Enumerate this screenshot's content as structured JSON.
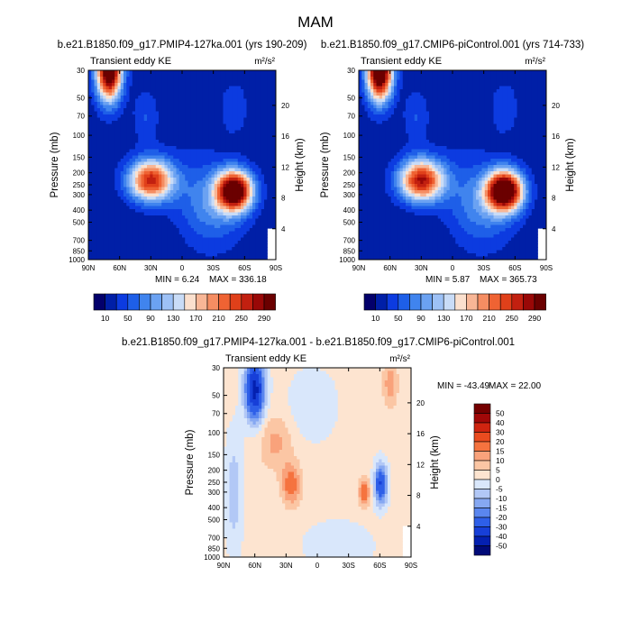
{
  "figure": {
    "title": "MAM",
    "y_axis_label": "Pressure (mb)",
    "y2_axis_label": "Height (km)",
    "x_ticks": [
      "90N",
      "60N",
      "30N",
      "0",
      "30S",
      "60S",
      "90S"
    ],
    "pressure_ticks": [
      "30",
      "50",
      "70",
      "100",
      "150",
      "200",
      "250",
      "300",
      "400",
      "500",
      "700",
      "850",
      "1000"
    ],
    "height_ticks": [
      "20",
      "16",
      "12",
      "8",
      "4"
    ]
  },
  "chart_data": [
    {
      "type": "heatmap",
      "title": "b.e21.B1850.f09_g17.PMIP4-127ka.001 (yrs 190-209)",
      "left_label": "Transient eddy KE",
      "units": "m²/s²",
      "min_label": "MIN =   6.24",
      "max_label": "MAX = 336.18",
      "min": 6.24,
      "max": 336.18,
      "colorbar_labels": [
        "10",
        "50",
        "90",
        "130",
        "170",
        "210",
        "250",
        "290"
      ],
      "features": [
        {
          "lat": -70,
          "pressure": 30,
          "value": 330
        },
        {
          "lat": -30,
          "pressure": 230,
          "value": 240
        },
        {
          "lat": 50,
          "pressure": 280,
          "value": 330
        }
      ]
    },
    {
      "type": "heatmap",
      "title": "b.e21.B1850.f09_g17.CMIP6-piControl.001 (yrs 714-733)",
      "left_label": "Transient eddy KE",
      "units": "m²/s²",
      "min_label": "MIN =   5.87",
      "max_label": "MAX = 365.73",
      "min": 5.87,
      "max": 365.73,
      "colorbar_labels": [
        "10",
        "50",
        "90",
        "130",
        "170",
        "210",
        "250",
        "290"
      ],
      "features": [
        {
          "lat": -70,
          "pressure": 30,
          "value": 360
        },
        {
          "lat": -30,
          "pressure": 230,
          "value": 250
        },
        {
          "lat": 50,
          "pressure": 280,
          "value": 360
        }
      ]
    },
    {
      "type": "heatmap",
      "title": "b.e21.B1850.f09_g17.PMIP4-127ka.001 - b.e21.B1850.f09_g17.CMIP6-piControl.001",
      "left_label": "Transient eddy KE",
      "units": "m²/s²",
      "min_label": "MIN = -43.49",
      "max_label": "MAX =  22.00",
      "min": -43.49,
      "max": 22.0,
      "colorbar_labels": [
        "50",
        "40",
        "30",
        "20",
        "15",
        "10",
        "5",
        "0",
        "-5",
        "-10",
        "-15",
        "-20",
        "-30",
        "-40",
        "-50"
      ],
      "features": [
        {
          "lat": -60,
          "pressure": 50,
          "value": -40
        },
        {
          "lat": -25,
          "pressure": 250,
          "value": 18
        },
        {
          "lat": 45,
          "pressure": 300,
          "value": 20
        },
        {
          "lat": 60,
          "pressure": 250,
          "value": -30
        },
        {
          "lat": 70,
          "pressure": 40,
          "value": 10
        }
      ]
    }
  ],
  "colors": {
    "sequential": [
      "#03006b",
      "#001fa7",
      "#0c3be0",
      "#1e5fe8",
      "#4084ee",
      "#6ba2f2",
      "#9dc1f6",
      "#c9dcf7",
      "#fbe0ce",
      "#f8b696",
      "#f58d62",
      "#ef6333",
      "#e0401a",
      "#c22010",
      "#990807",
      "#6b0000"
    ],
    "diverging": [
      "#000a78",
      "#0420b0",
      "#173fd8",
      "#2e5fe8",
      "#5a86ef",
      "#86a8f2",
      "#b2c8f6",
      "#d9e7fb",
      "#fde4d0",
      "#fbc6a4",
      "#f9a27b",
      "#f5733f",
      "#ea4b1f",
      "#cf2410",
      "#a10808",
      "#750000"
    ]
  }
}
